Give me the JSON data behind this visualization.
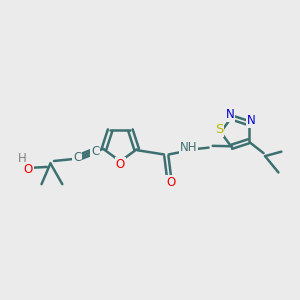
{
  "bg_color": "#ebebeb",
  "bond_color": "#3d7070",
  "bond_width": 1.8,
  "atom_colors": {
    "O": "#ee0000",
    "N": "#0000cc",
    "S": "#bbbb00",
    "C": "#3d7070",
    "H": "#808080"
  },
  "font_size": 8.5,
  "title": ""
}
